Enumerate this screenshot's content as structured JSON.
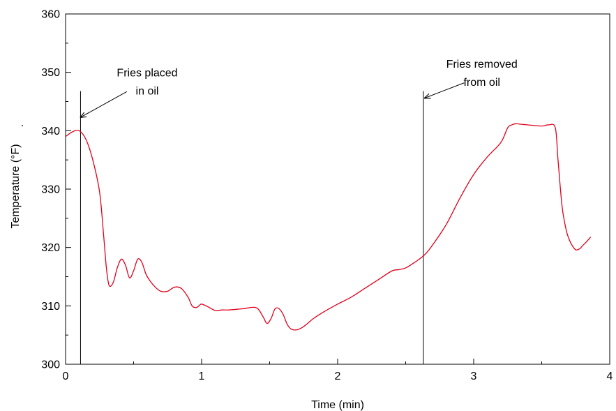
{
  "chart_data": {
    "type": "line",
    "title": "",
    "xlabel": "Time (min)",
    "ylabel": "Temperature (°F)",
    "ylabel_suffix": ".",
    "xlim": [
      0,
      4
    ],
    "ylim": [
      300,
      360
    ],
    "x_ticks": [
      "0",
      "1",
      "2",
      "3",
      "4"
    ],
    "y_ticks": [
      "300",
      "310",
      "320",
      "330",
      "340",
      "350",
      "360"
    ],
    "x_minor_step": 0.5,
    "y_minor_step": 5,
    "grid": false,
    "legend": "none",
    "series": [
      {
        "color": "#e0001b",
        "x": [
          0.0,
          0.05,
          0.1,
          0.15,
          0.2,
          0.25,
          0.28,
          0.3,
          0.32,
          0.35,
          0.38,
          0.41,
          0.44,
          0.47,
          0.5,
          0.53,
          0.56,
          0.59,
          0.62,
          0.66,
          0.7,
          0.75,
          0.8,
          0.85,
          0.9,
          0.93,
          0.96,
          0.98,
          1.0,
          1.05,
          1.1,
          1.15,
          1.2,
          1.3,
          1.4,
          1.45,
          1.48,
          1.51,
          1.54,
          1.57,
          1.6,
          1.63,
          1.66,
          1.7,
          1.74,
          1.78,
          1.82,
          1.9,
          2.0,
          2.1,
          2.2,
          2.3,
          2.4,
          2.45,
          2.5,
          2.55,
          2.6,
          2.65,
          2.7,
          2.8,
          2.9,
          3.0,
          3.1,
          3.2,
          3.25,
          3.28,
          3.31,
          3.35,
          3.4,
          3.5,
          3.55,
          3.6,
          3.62,
          3.65,
          3.68,
          3.7,
          3.72,
          3.75,
          3.78,
          3.8,
          3.83,
          3.86
        ],
        "y": [
          339.0,
          339.8,
          340.0,
          338.5,
          335.0,
          329.5,
          322.0,
          316.5,
          313.5,
          314.0,
          316.5,
          318.0,
          317.0,
          314.8,
          316.0,
          318.0,
          317.5,
          315.5,
          314.3,
          313.2,
          312.5,
          312.5,
          313.2,
          313.0,
          311.5,
          310.0,
          309.7,
          310.0,
          310.3,
          309.8,
          309.2,
          309.3,
          309.3,
          309.5,
          309.7,
          308.2,
          307.0,
          307.8,
          309.5,
          309.5,
          308.5,
          306.8,
          306.0,
          305.9,
          306.3,
          307.0,
          307.8,
          309.0,
          310.3,
          311.5,
          313.0,
          314.5,
          316.0,
          316.2,
          316.5,
          317.2,
          318.0,
          319.0,
          320.5,
          324.0,
          328.5,
          332.5,
          335.5,
          338.0,
          340.5,
          341.0,
          341.2,
          341.1,
          341.0,
          340.8,
          341.0,
          340.5,
          335.0,
          327.0,
          323.0,
          321.5,
          320.5,
          319.6,
          319.8,
          320.3,
          321.0,
          321.8
        ]
      }
    ],
    "markers": [
      {
        "x": 0.11,
        "y_top": 346.8
      },
      {
        "x": 2.63,
        "y_top": 346.8
      }
    ],
    "annotations": [
      {
        "lines": [
          "Fries placed",
          "in oil"
        ],
        "text_x": 0.6,
        "text_y": [
          349.3,
          346.2
        ],
        "arrow_from": [
          0.45,
          346.7
        ],
        "arrow_to": [
          0.11,
          342.3
        ]
      },
      {
        "lines": [
          "Fries removed",
          "from oil"
        ],
        "text_x": 3.06,
        "text_y": [
          350.8,
          347.7
        ],
        "arrow_from": [
          2.93,
          348.2
        ],
        "arrow_to": [
          2.64,
          345.6
        ]
      }
    ]
  }
}
